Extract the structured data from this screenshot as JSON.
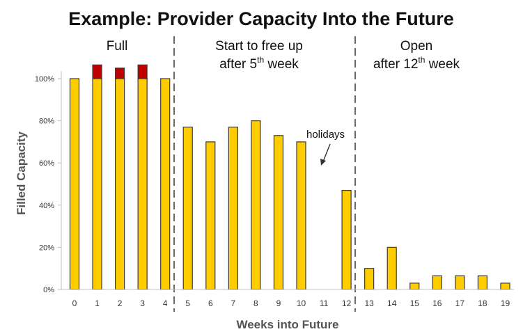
{
  "chart_data": {
    "type": "bar",
    "title": "Example: Provider Capacity Into the Future",
    "xlabel": "Weeks into Future",
    "ylabel": "Filled Capacity",
    "ylim": [
      0,
      1.1
    ],
    "yticks": [
      "0%",
      "20%",
      "40%",
      "60%",
      "80%",
      "100%"
    ],
    "yticks_values": [
      0,
      0.2,
      0.4,
      0.6,
      0.8,
      1.0
    ],
    "categories": [
      "0",
      "1",
      "2",
      "3",
      "4",
      "5",
      "6",
      "7",
      "8",
      "9",
      "10",
      "11",
      "12",
      "13",
      "14",
      "15",
      "16",
      "17",
      "18",
      "19"
    ],
    "series": [
      {
        "color": "#FFCC00",
        "values": [
          1.0,
          1.0,
          1.0,
          1.0,
          1.0,
          0.77,
          0.7,
          0.77,
          0.8,
          0.73,
          0.7,
          0,
          0.47,
          0.1,
          0.2,
          0.03,
          0.065,
          0.065,
          0.065,
          0.03
        ]
      },
      {
        "color": "#C00000",
        "values": [
          0,
          0.065,
          0.05,
          0.065,
          0,
          0,
          0,
          0,
          0,
          0,
          0,
          0,
          0,
          0,
          0,
          0,
          0,
          0,
          0,
          0
        ]
      }
    ],
    "regions": [
      {
        "lines": [
          {
            "text": "Full"
          }
        ]
      },
      {
        "lines": [
          {
            "text": "Start to free up"
          },
          {
            "text": "after 5",
            "sup": "th",
            "tail": " week"
          }
        ]
      },
      {
        "lines": [
          {
            "text": "Open"
          },
          {
            "text": "after 12",
            "sup": "th",
            "tail": " week"
          }
        ]
      }
    ],
    "annotation": {
      "text": "holidays"
    },
    "grid": false,
    "legend": "none"
  }
}
